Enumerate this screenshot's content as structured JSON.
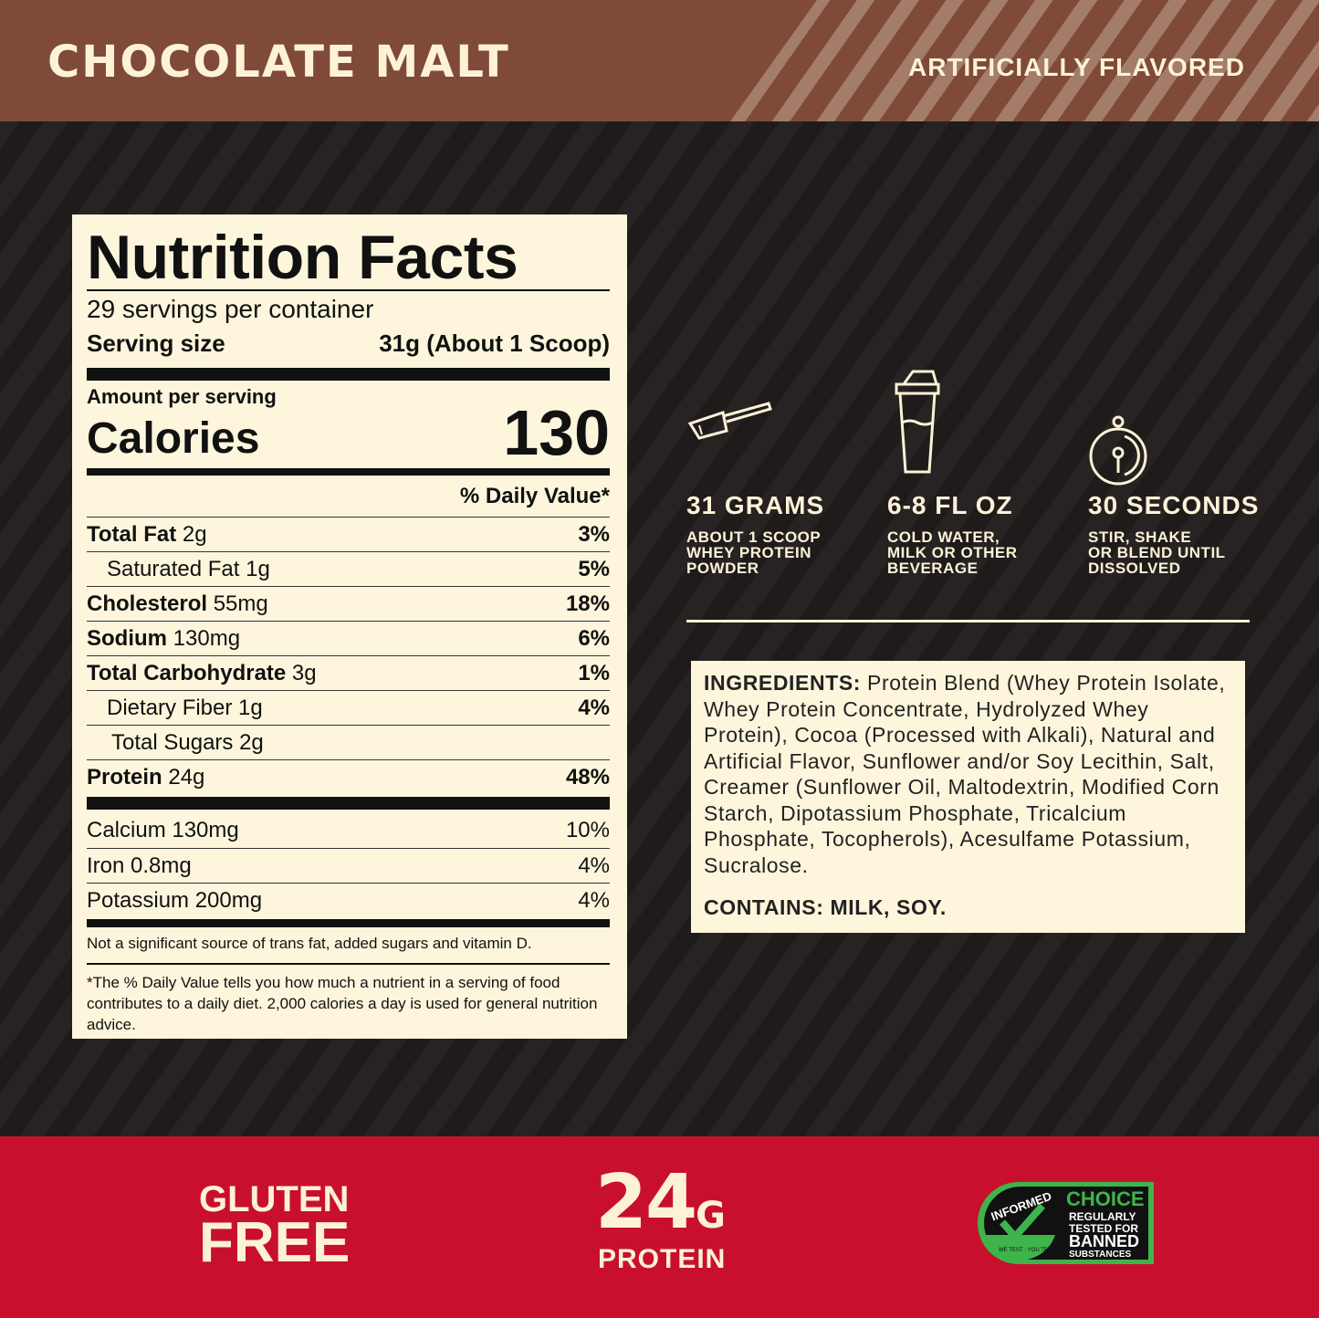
{
  "header": {
    "title": "CHOCOLATE MALT",
    "subtitle": "ARTIFICIALLY FLAVORED"
  },
  "nutrition": {
    "title": "Nutrition Facts",
    "servings": "29 servings per container",
    "serving_size_label": "Serving size",
    "serving_size_value": "31g (About 1 Scoop)",
    "amount_label": "Amount per serving",
    "calories_label": "Calories",
    "calories_value": "130",
    "dv_header": "% Daily Value*",
    "rows": [
      {
        "name": "Total Fat",
        "amount": "2g",
        "dv": "3%",
        "bold": true,
        "indent": 0
      },
      {
        "name": "Saturated Fat",
        "amount": "1g",
        "dv": "5%",
        "bold": false,
        "indent": 1
      },
      {
        "name": "Cholesterol",
        "amount": "55mg",
        "dv": "18%",
        "bold": true,
        "indent": 0
      },
      {
        "name": "Sodium",
        "amount": "130mg",
        "dv": "6%",
        "bold": true,
        "indent": 0
      },
      {
        "name": "Total Carbohydrate",
        "amount": "3g",
        "dv": "1%",
        "bold": true,
        "indent": 0
      },
      {
        "name": "Dietary Fiber",
        "amount": "1g",
        "dv": "4%",
        "bold": false,
        "indent": 1
      },
      {
        "name": "Total Sugars",
        "amount": "2g",
        "dv": "",
        "bold": false,
        "indent": 2
      },
      {
        "name": "Protein",
        "amount": "24g",
        "dv": "48%",
        "bold": true,
        "indent": 0
      }
    ],
    "vitamins": [
      {
        "name": "Calcium 130mg",
        "dv": "10%"
      },
      {
        "name": "Iron 0.8mg",
        "dv": "4%"
      },
      {
        "name": "Potassium 200mg",
        "dv": "4%"
      }
    ],
    "note": "Not a significant source of trans fat, added sugars and vitamin D.",
    "footnote": "*The % Daily Value tells you how much a nutrient in a serving of food contributes to a daily diet. 2,000 calories a day is used for general nutrition advice."
  },
  "directions": [
    {
      "icon": "scoop-icon",
      "title": "31 GRAMS",
      "desc": "ABOUT 1 SCOOP\nWHEY PROTEIN\nPOWDER"
    },
    {
      "icon": "shaker-icon",
      "title": "6-8 FL OZ",
      "desc": "COLD WATER,\nMILK OR OTHER\nBEVERAGE"
    },
    {
      "icon": "stopwatch-icon",
      "title": "30 SECONDS",
      "desc": "STIR, SHAKE\nOR BLEND UNTIL\nDISSOLVED"
    }
  ],
  "ingredients": {
    "label": "INGREDIENTS:",
    "text": " Protein Blend (Whey Protein Isolate, Whey Protein Concentrate, Hydrolyzed Whey Protein), Cocoa (Processed with Alkali), Natural and Artificial Flavor, Sunflower and/or Soy Lecithin, Salt, Creamer (Sunflower Oil, Maltodextrin, Modified Corn Starch, Dipotassium Phosphate, Tricalcium Phosphate, Tocopherols), Acesulfame Potassium, Sucralose.",
    "contains": "CONTAINS: MILK, SOY."
  },
  "footer": {
    "gluten1": "GLUTEN",
    "gluten2": "FREE",
    "protein_num": "24",
    "protein_unit": "G",
    "protein_label": "PROTEIN",
    "badge": {
      "arc": "INFORMED",
      "arc2": "WE TEST · YOU TRUST",
      "choice": "CHOICE",
      "l1": "REGULARLY",
      "l2": "TESTED FOR",
      "l3": "BANNED",
      "l4": "SUBSTANCES"
    }
  },
  "colors": {
    "header": "#7f4a38",
    "stripe": "#a47c6a",
    "background": "#231f1e",
    "cream": "#fdf6dc",
    "red": "#c8102e",
    "green": "#3db54a"
  }
}
